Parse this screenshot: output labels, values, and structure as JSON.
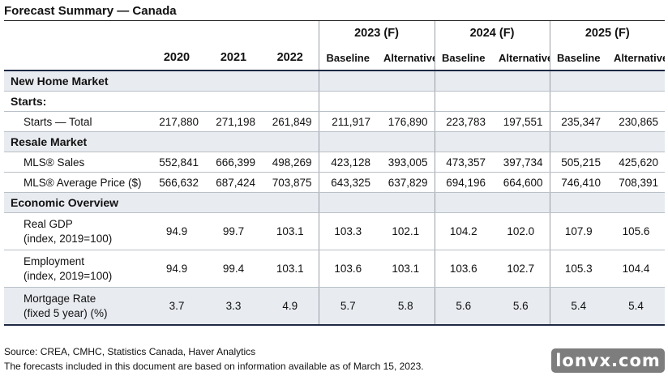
{
  "title": "Forecast Summary — Canada",
  "columns": {
    "years": [
      "2020",
      "2021",
      "2022"
    ],
    "forecast_years": [
      "2023 (F)",
      "2024 (F)",
      "2025 (F)"
    ],
    "scenarios": [
      "Baseline",
      "Alternative",
      "Baseline",
      "Alternative",
      "Baseline",
      "Alternative"
    ]
  },
  "sections": {
    "new_home": "New Home Market",
    "starts": "Starts:",
    "resale": "Resale Market",
    "economic": "Economic Overview"
  },
  "rows": {
    "starts_total": {
      "label": "Starts — Total",
      "values": [
        "217,880",
        "271,198",
        "261,849",
        "211,917",
        "176,890",
        "223,783",
        "197,551",
        "235,347",
        "230,865"
      ]
    },
    "mls_sales": {
      "label": "MLS® Sales",
      "values": [
        "552,841",
        "666,399",
        "498,269",
        "423,128",
        "393,005",
        "473,357",
        "397,734",
        "505,215",
        "425,620"
      ]
    },
    "mls_price": {
      "label": "MLS® Average Price ($)",
      "values": [
        "566,632",
        "687,424",
        "703,875",
        "643,325",
        "637,829",
        "694,196",
        "664,600",
        "746,410",
        "708,391"
      ]
    },
    "real_gdp": {
      "label1": "Real GDP",
      "label2": "(index, 2019=100)",
      "values": [
        "94.9",
        "99.7",
        "103.1",
        "103.3",
        "102.1",
        "104.2",
        "102.0",
        "107.9",
        "105.6"
      ]
    },
    "employment": {
      "label1": "Employment",
      "label2": "(index, 2019=100)",
      "values": [
        "94.9",
        "99.4",
        "103.1",
        "103.6",
        "103.1",
        "103.6",
        "102.7",
        "105.3",
        "104.4"
      ]
    },
    "mortgage": {
      "label1": "Mortgage Rate",
      "label2": "(fixed 5 year) (%)",
      "values": [
        "3.7",
        "3.3",
        "4.9",
        "5.7",
        "5.8",
        "5.6",
        "5.6",
        "5.4",
        "5.4"
      ]
    }
  },
  "footer": {
    "source": "Source: CREA, CMHC, Statistics Canada, Haver Analytics",
    "note": "The forecasts included in this document are based on information available as of March 15, 2023."
  },
  "watermark": "lonvx.com"
}
